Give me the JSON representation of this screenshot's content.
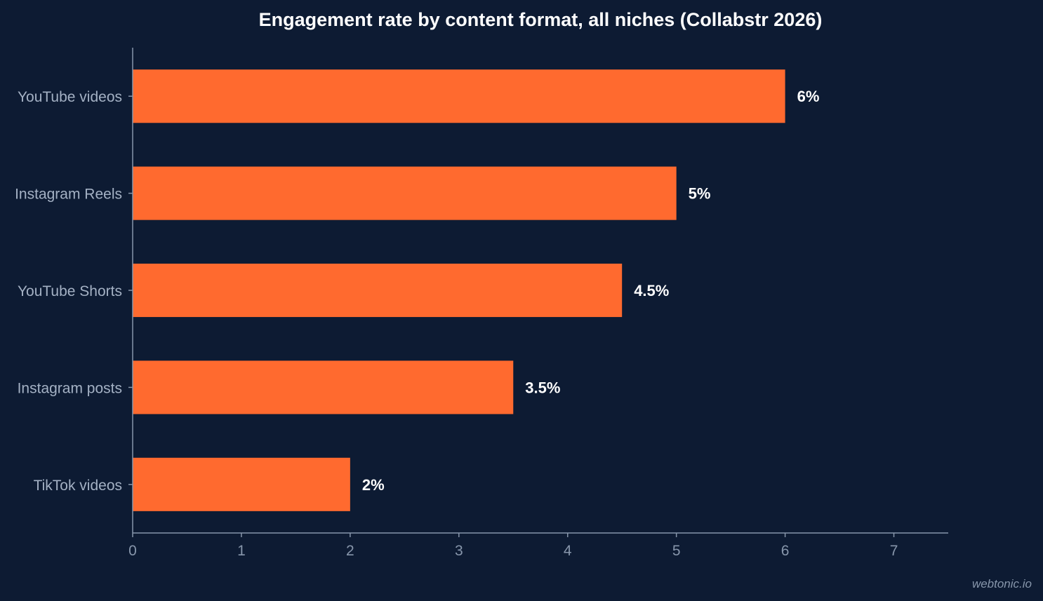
{
  "chart_data": {
    "type": "bar",
    "orientation": "horizontal",
    "title": "Engagement rate by content format, all niches (Collabstr 2026)",
    "categories": [
      "YouTube videos",
      "Instagram Reels",
      "YouTube Shorts",
      "Instagram posts",
      "TikTok videos"
    ],
    "values": [
      6,
      5,
      4.5,
      3.5,
      2
    ],
    "value_labels": [
      "6%",
      "5%",
      "4.5%",
      "3.5%",
      "2%"
    ],
    "xlim": [
      0,
      7.5
    ],
    "x_ticks": [
      0,
      1,
      2,
      3,
      4,
      5,
      6,
      7
    ],
    "xlabel": "",
    "ylabel": "",
    "grid": false,
    "legend": "none",
    "colors": {
      "background": "#0d1b33",
      "bar": "#ff6a2f",
      "axis": "#8796ab",
      "tick_text": "#8796ab",
      "category_text": "#a4b1c4",
      "title_text": "#ffffff",
      "value_text": "#ffffff"
    }
  },
  "credit": "webtonic.io"
}
